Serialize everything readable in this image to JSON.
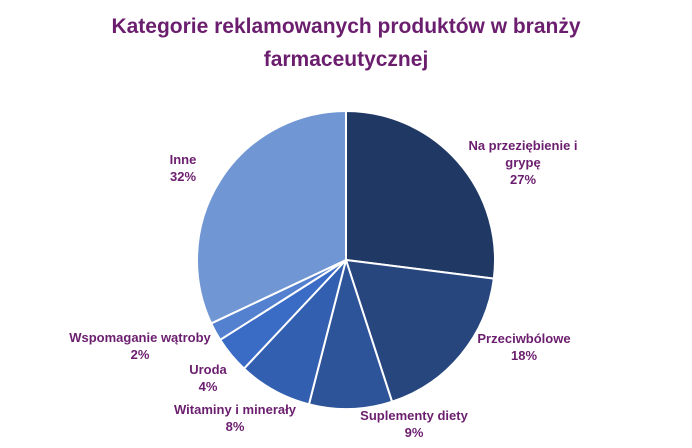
{
  "chart_data": {
    "type": "pie",
    "title_lines": [
      "Kategorie reklamowanych produktów w branży",
      "farmaceutycznej"
    ],
    "slices": [
      {
        "label_lines": [
          "Na przeziębienie i",
          "grypę"
        ],
        "percent_label": "27%",
        "value": 27,
        "color": "#1f3864"
      },
      {
        "label_lines": [
          "Przeciwbólowe"
        ],
        "percent_label": "18%",
        "value": 18,
        "color": "#27467e"
      },
      {
        "label_lines": [
          "Suplementy diety"
        ],
        "percent_label": "9%",
        "value": 9,
        "color": "#2d5398"
      },
      {
        "label_lines": [
          "Witaminy i minerały"
        ],
        "percent_label": "8%",
        "value": 8,
        "color": "#325fb0"
      },
      {
        "label_lines": [
          "Uroda"
        ],
        "percent_label": "4%",
        "value": 4,
        "color": "#3a6cc6"
      },
      {
        "label_lines": [
          "Wspomaganie wątroby"
        ],
        "percent_label": "2%",
        "value": 2,
        "color": "#5380cf"
      },
      {
        "label_lines": [
          "Inne"
        ],
        "percent_label": "32%",
        "value": 32,
        "color": "#7196d4"
      }
    ],
    "legend": "none",
    "data_labels": "outside"
  }
}
